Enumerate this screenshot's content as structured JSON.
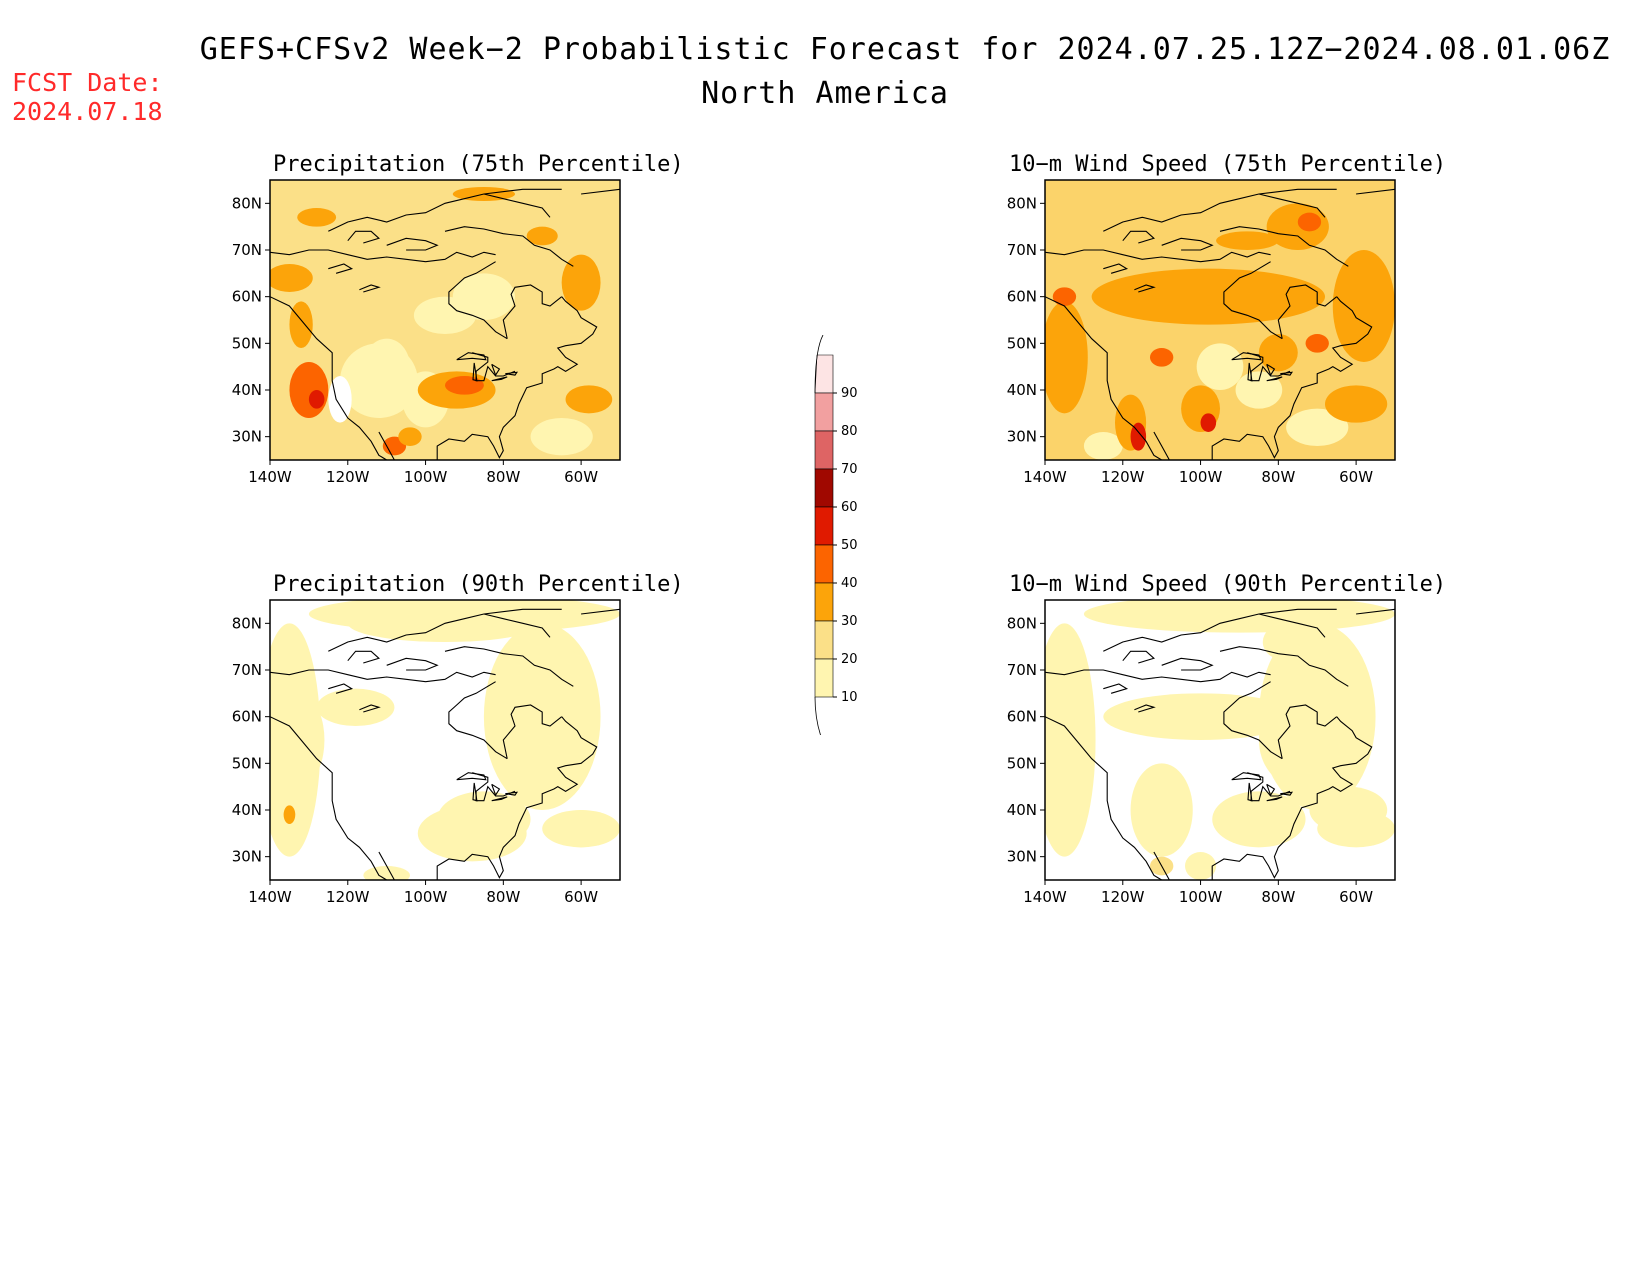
{
  "title": {
    "line1": "GEFS+CFSv2 Week−2 Probabilistic Forecast for 2024.07.25.12Z−2024.08.01.06Z",
    "line2": "North America"
  },
  "fcst_date": {
    "label": "FCST Date:",
    "value": "2024.07.18"
  },
  "panels": [
    {
      "id": "precip75",
      "title": "Precipitation (75th Percentile)",
      "base_color": "#fbe088"
    },
    {
      "id": "wind75",
      "title": "10−m Wind Speed (75th Percentile)",
      "base_color": "#fbd36a"
    },
    {
      "id": "precip90",
      "title": "Precipitation (90th Percentile)",
      "base_color": "#ffffff"
    },
    {
      "id": "wind90",
      "title": "10−m Wind Speed (90th Percentile)",
      "base_color": "#ffffff"
    }
  ],
  "axes": {
    "lon_labels": [
      "140W",
      "120W",
      "100W",
      "80W",
      "60W"
    ],
    "lat_labels": [
      "80N",
      "70N",
      "60N",
      "50N",
      "40N",
      "30N"
    ]
  },
  "colorbar": {
    "labels": [
      "10",
      "20",
      "30",
      "40",
      "50",
      "60",
      "70",
      "80",
      "90"
    ],
    "colors": [
      "#fff5b0",
      "#fbe088",
      "#fca40a",
      "#fc6400",
      "#e01a00",
      "#a00800",
      "#de6464",
      "#f2a0a0",
      "#fde4e4"
    ]
  }
}
